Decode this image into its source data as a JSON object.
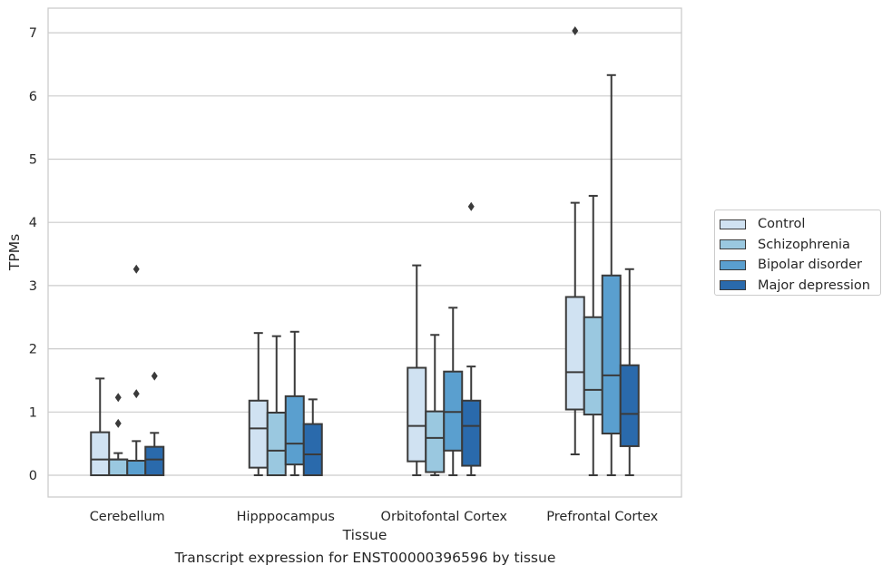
{
  "caption": "Transcript expression for ENST00000396596 by tissue",
  "chart_data": {
    "type": "box",
    "xlabel": "Tissue",
    "ylabel": "TPMs",
    "ylim": [
      -0.35,
      7.38
    ],
    "yticks": [
      0,
      1,
      2,
      3,
      4,
      5,
      6,
      7
    ],
    "grid": "horizontal",
    "legend_placement": "center-right",
    "categories": [
      "Cerebellum",
      "Hipppocampus",
      "Orbitofontal Cortex",
      "Prefrontal Cortex"
    ],
    "series": [
      {
        "name": "Control",
        "color": "#d0e2f2",
        "boxes": [
          {
            "whisker_low": 0,
            "q1": 0,
            "median": 0.25,
            "q3": 0.68,
            "whisker_high": 1.53,
            "outliers": []
          },
          {
            "whisker_low": 0,
            "q1": 0.12,
            "median": 0.74,
            "q3": 1.18,
            "whisker_high": 2.25,
            "outliers": []
          },
          {
            "whisker_low": 0,
            "q1": 0.22,
            "median": 0.78,
            "q3": 1.7,
            "whisker_high": 3.32,
            "outliers": []
          },
          {
            "whisker_low": 0.33,
            "q1": 1.04,
            "median": 1.63,
            "q3": 2.82,
            "whisker_high": 4.31,
            "outliers": [
              7.03
            ]
          }
        ]
      },
      {
        "name": "Schizophrenia",
        "color": "#9ac8e0",
        "boxes": [
          {
            "whisker_low": 0,
            "q1": 0,
            "median": 0.25,
            "q3": 0.25,
            "whisker_high": 0.35,
            "outliers": [
              0.82,
              1.23
            ]
          },
          {
            "whisker_low": 0,
            "q1": 0,
            "median": 0.39,
            "q3": 0.99,
            "whisker_high": 2.2,
            "outliers": []
          },
          {
            "whisker_low": 0,
            "q1": 0.05,
            "median": 0.59,
            "q3": 1.01,
            "whisker_high": 2.22,
            "outliers": []
          },
          {
            "whisker_low": 0,
            "q1": 0.96,
            "median": 1.35,
            "q3": 2.5,
            "whisker_high": 4.42,
            "outliers": []
          }
        ]
      },
      {
        "name": "Bipolar disorder",
        "color": "#5a9fcf",
        "boxes": [
          {
            "whisker_low": 0,
            "q1": 0,
            "median": 0.23,
            "q3": 0.23,
            "whisker_high": 0.54,
            "outliers": [
              1.29,
              3.26
            ]
          },
          {
            "whisker_low": 0,
            "q1": 0.17,
            "median": 0.5,
            "q3": 1.25,
            "whisker_high": 2.27,
            "outliers": []
          },
          {
            "whisker_low": 0,
            "q1": 0.39,
            "median": 1.0,
            "q3": 1.64,
            "whisker_high": 2.65,
            "outliers": []
          },
          {
            "whisker_low": 0,
            "q1": 0.66,
            "median": 1.58,
            "q3": 3.16,
            "whisker_high": 6.33,
            "outliers": []
          }
        ]
      },
      {
        "name": "Major depression",
        "color": "#2a6aac",
        "boxes": [
          {
            "whisker_low": 0,
            "q1": 0,
            "median": 0.25,
            "q3": 0.45,
            "whisker_high": 0.67,
            "outliers": [
              1.57
            ]
          },
          {
            "whisker_low": 0,
            "q1": 0,
            "median": 0.33,
            "q3": 0.81,
            "whisker_high": 1.2,
            "outliers": []
          },
          {
            "whisker_low": 0,
            "q1": 0.15,
            "median": 0.78,
            "q3": 1.18,
            "whisker_high": 1.72,
            "outliers": [
              4.25
            ]
          },
          {
            "whisker_low": 0,
            "q1": 0.46,
            "median": 0.97,
            "q3": 1.74,
            "whisker_high": 3.26,
            "outliers": []
          }
        ]
      }
    ]
  }
}
